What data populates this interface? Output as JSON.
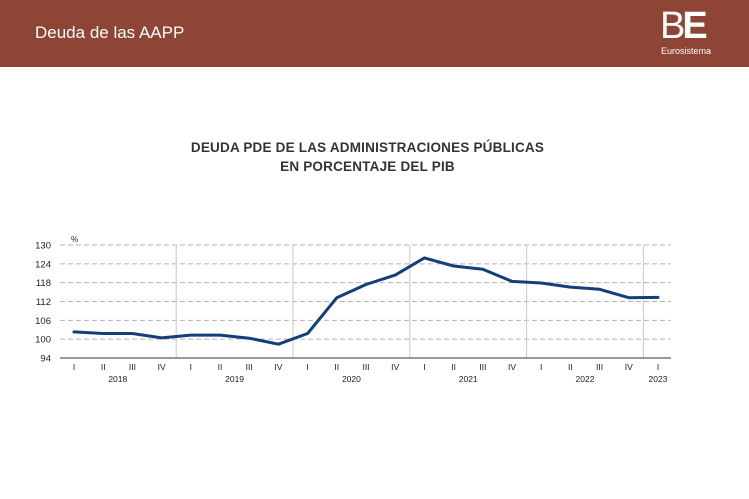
{
  "header": {
    "title": "Deuda de las AAPP",
    "logo_mark_b": "B",
    "logo_mark_e": "E",
    "logo_sub": "Eurosistema",
    "bg_color": "#8f4535"
  },
  "chart_data": {
    "type": "line",
    "title_line1": "DEUDA PDE DE LAS ADMINISTRACIONES PÚBLICAS",
    "title_line2": "EN PORCENTAJE DEL PIB",
    "unit_label": "%",
    "ylim": [
      94,
      130
    ],
    "y_ticks": [
      94,
      100,
      106,
      112,
      118,
      124,
      130
    ],
    "grid": true,
    "legend": "none",
    "quarter_labels": [
      "I",
      "II",
      "III",
      "IV"
    ],
    "quarter_colors": [
      "#222222",
      "#222222",
      "#8a2a6a",
      "#222222"
    ],
    "years": [
      "2018",
      "2019",
      "2020",
      "2021",
      "2022",
      "2023"
    ],
    "x": [
      "2018-I",
      "2018-II",
      "2018-III",
      "2018-IV",
      "2019-I",
      "2019-II",
      "2019-III",
      "2019-IV",
      "2020-I",
      "2020-II",
      "2020-III",
      "2020-IV",
      "2021-I",
      "2021-II",
      "2021-III",
      "2021-IV",
      "2022-I",
      "2022-II",
      "2022-III",
      "2022-IV",
      "2023-I"
    ],
    "series": [
      {
        "color": "#123f7a",
        "values": [
          102.3,
          101.8,
          101.8,
          100.4,
          101.3,
          101.3,
          100.3,
          98.4,
          101.8,
          113.2,
          117.4,
          120.4,
          125.9,
          123.3,
          122.3,
          118.4,
          117.9,
          116.6,
          115.9,
          113.2,
          113.3
        ]
      }
    ]
  }
}
